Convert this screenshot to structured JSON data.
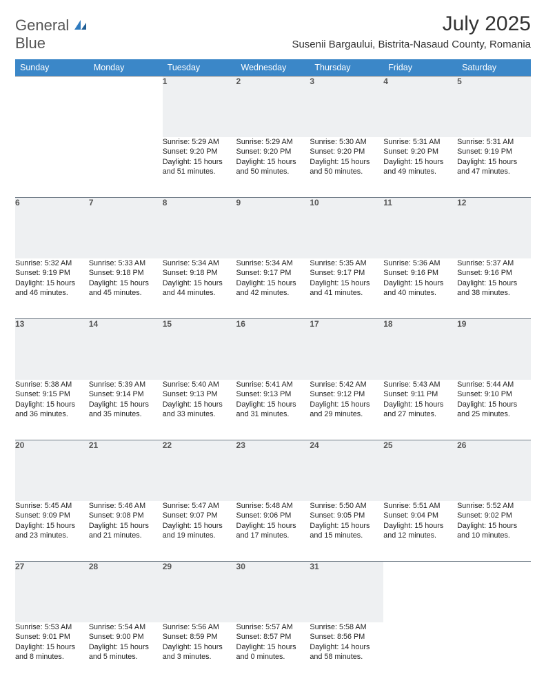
{
  "logo": {
    "line1": "General",
    "line2": "Blue"
  },
  "title": "July 2025",
  "subtitle": "Susenii Bargaului, Bistrita-Nasaud County, Romania",
  "colors": {
    "header_bg": "#3b87c8",
    "header_fg": "#ffffff",
    "daynum_bg": "#eef0f2",
    "rule": "#6e7a85",
    "logo_blue": "#2f7bbf"
  },
  "day_headers": [
    "Sunday",
    "Monday",
    "Tuesday",
    "Wednesday",
    "Thursday",
    "Friday",
    "Saturday"
  ],
  "weeks": [
    [
      null,
      null,
      {
        "n": "1",
        "sr": "5:29 AM",
        "ss": "9:20 PM",
        "dl": "15 hours and 51 minutes."
      },
      {
        "n": "2",
        "sr": "5:29 AM",
        "ss": "9:20 PM",
        "dl": "15 hours and 50 minutes."
      },
      {
        "n": "3",
        "sr": "5:30 AM",
        "ss": "9:20 PM",
        "dl": "15 hours and 50 minutes."
      },
      {
        "n": "4",
        "sr": "5:31 AM",
        "ss": "9:20 PM",
        "dl": "15 hours and 49 minutes."
      },
      {
        "n": "5",
        "sr": "5:31 AM",
        "ss": "9:19 PM",
        "dl": "15 hours and 47 minutes."
      }
    ],
    [
      {
        "n": "6",
        "sr": "5:32 AM",
        "ss": "9:19 PM",
        "dl": "15 hours and 46 minutes."
      },
      {
        "n": "7",
        "sr": "5:33 AM",
        "ss": "9:18 PM",
        "dl": "15 hours and 45 minutes."
      },
      {
        "n": "8",
        "sr": "5:34 AM",
        "ss": "9:18 PM",
        "dl": "15 hours and 44 minutes."
      },
      {
        "n": "9",
        "sr": "5:34 AM",
        "ss": "9:17 PM",
        "dl": "15 hours and 42 minutes."
      },
      {
        "n": "10",
        "sr": "5:35 AM",
        "ss": "9:17 PM",
        "dl": "15 hours and 41 minutes."
      },
      {
        "n": "11",
        "sr": "5:36 AM",
        "ss": "9:16 PM",
        "dl": "15 hours and 40 minutes."
      },
      {
        "n": "12",
        "sr": "5:37 AM",
        "ss": "9:16 PM",
        "dl": "15 hours and 38 minutes."
      }
    ],
    [
      {
        "n": "13",
        "sr": "5:38 AM",
        "ss": "9:15 PM",
        "dl": "15 hours and 36 minutes."
      },
      {
        "n": "14",
        "sr": "5:39 AM",
        "ss": "9:14 PM",
        "dl": "15 hours and 35 minutes."
      },
      {
        "n": "15",
        "sr": "5:40 AM",
        "ss": "9:13 PM",
        "dl": "15 hours and 33 minutes."
      },
      {
        "n": "16",
        "sr": "5:41 AM",
        "ss": "9:13 PM",
        "dl": "15 hours and 31 minutes."
      },
      {
        "n": "17",
        "sr": "5:42 AM",
        "ss": "9:12 PM",
        "dl": "15 hours and 29 minutes."
      },
      {
        "n": "18",
        "sr": "5:43 AM",
        "ss": "9:11 PM",
        "dl": "15 hours and 27 minutes."
      },
      {
        "n": "19",
        "sr": "5:44 AM",
        "ss": "9:10 PM",
        "dl": "15 hours and 25 minutes."
      }
    ],
    [
      {
        "n": "20",
        "sr": "5:45 AM",
        "ss": "9:09 PM",
        "dl": "15 hours and 23 minutes."
      },
      {
        "n": "21",
        "sr": "5:46 AM",
        "ss": "9:08 PM",
        "dl": "15 hours and 21 minutes."
      },
      {
        "n": "22",
        "sr": "5:47 AM",
        "ss": "9:07 PM",
        "dl": "15 hours and 19 minutes."
      },
      {
        "n": "23",
        "sr": "5:48 AM",
        "ss": "9:06 PM",
        "dl": "15 hours and 17 minutes."
      },
      {
        "n": "24",
        "sr": "5:50 AM",
        "ss": "9:05 PM",
        "dl": "15 hours and 15 minutes."
      },
      {
        "n": "25",
        "sr": "5:51 AM",
        "ss": "9:04 PM",
        "dl": "15 hours and 12 minutes."
      },
      {
        "n": "26",
        "sr": "5:52 AM",
        "ss": "9:02 PM",
        "dl": "15 hours and 10 minutes."
      }
    ],
    [
      {
        "n": "27",
        "sr": "5:53 AM",
        "ss": "9:01 PM",
        "dl": "15 hours and 8 minutes."
      },
      {
        "n": "28",
        "sr": "5:54 AM",
        "ss": "9:00 PM",
        "dl": "15 hours and 5 minutes."
      },
      {
        "n": "29",
        "sr": "5:56 AM",
        "ss": "8:59 PM",
        "dl": "15 hours and 3 minutes."
      },
      {
        "n": "30",
        "sr": "5:57 AM",
        "ss": "8:57 PM",
        "dl": "15 hours and 0 minutes."
      },
      {
        "n": "31",
        "sr": "5:58 AM",
        "ss": "8:56 PM",
        "dl": "14 hours and 58 minutes."
      },
      null,
      null
    ]
  ],
  "labels": {
    "sunrise": "Sunrise: ",
    "sunset": "Sunset: ",
    "daylight": "Daylight: "
  }
}
